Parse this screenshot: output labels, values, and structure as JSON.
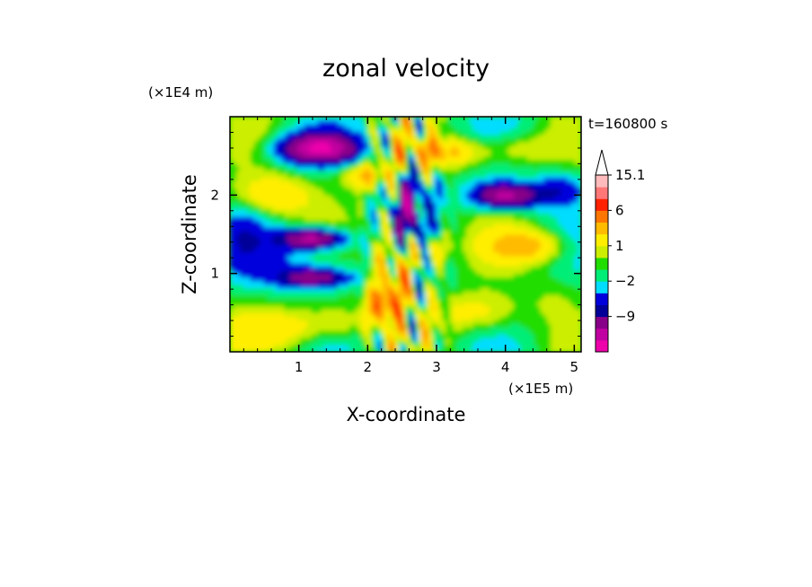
{
  "chart_data": {
    "type": "heatmap",
    "title": "zonal velocity",
    "xlabel": "X-coordinate",
    "ylabel": "Z-coordinate",
    "x_unit_label": "(×1E5 m)",
    "y_unit_label": "(×1E4 m)",
    "time_label": "t=160800 s",
    "xlim": [
      0,
      5.1
    ],
    "ylim": [
      0,
      3.0
    ],
    "x_ticks": [
      "1",
      "2",
      "3",
      "4",
      "5"
    ],
    "y_ticks": [
      "1",
      "2"
    ],
    "x_tick_values": [
      1,
      2,
      3,
      4,
      5
    ],
    "y_tick_values": [
      1,
      2
    ],
    "colorbar": {
      "levels": [
        -15,
        -12,
        -9,
        -6,
        -4,
        -2,
        -1,
        0,
        1,
        2,
        4,
        6,
        9,
        12,
        15.1
      ],
      "colors": [
        "#ee00aa",
        "#c000a0",
        "#880088",
        "#000099",
        "#0000dd",
        "#00ddff",
        "#00ee77",
        "#22dd00",
        "#ccee00",
        "#ffee00",
        "#ffbb00",
        "#ff7700",
        "#ff2200",
        "#ff7777",
        "#ffbbbb"
      ],
      "labels": [
        {
          "text": "15.1",
          "value": 15.1
        },
        {
          "text": "6",
          "value": 6
        },
        {
          "text": "1",
          "value": 1
        },
        {
          "text": "−2",
          "value": -2
        },
        {
          "text": "−9",
          "value": -9
        }
      ],
      "extend": "max"
    }
  }
}
